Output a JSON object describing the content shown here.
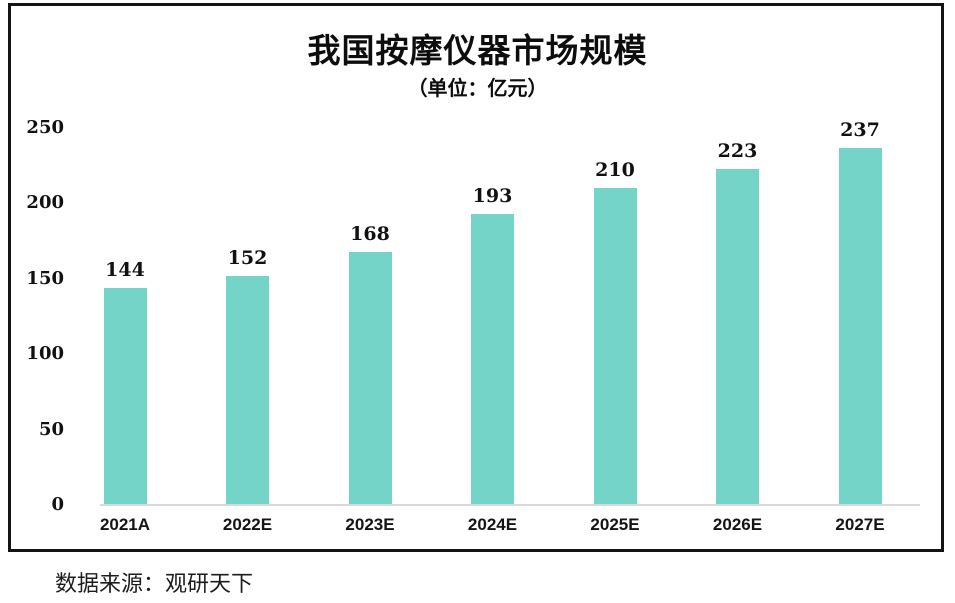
{
  "chart_data": {
    "type": "bar",
    "title": "我国按摩仪器市场规模",
    "subtitle": "（单位：亿元）",
    "categories": [
      "2021A",
      "2022E",
      "2023E",
      "2024E",
      "2025E",
      "2026E",
      "2027E"
    ],
    "values": [
      144,
      152,
      168,
      193,
      210,
      223,
      237
    ],
    "yticks": [
      0,
      50,
      100,
      150,
      200,
      250
    ],
    "ylim": [
      0,
      250
    ],
    "xlabel": "",
    "ylabel": "",
    "grid": false,
    "legend_position": "none",
    "bar_color": "#75d4c8",
    "axis_line_color": "#d9d9d9",
    "text_color": "#111111",
    "border_color": "#141414"
  },
  "footer": {
    "source": "数据来源：观研天下"
  }
}
